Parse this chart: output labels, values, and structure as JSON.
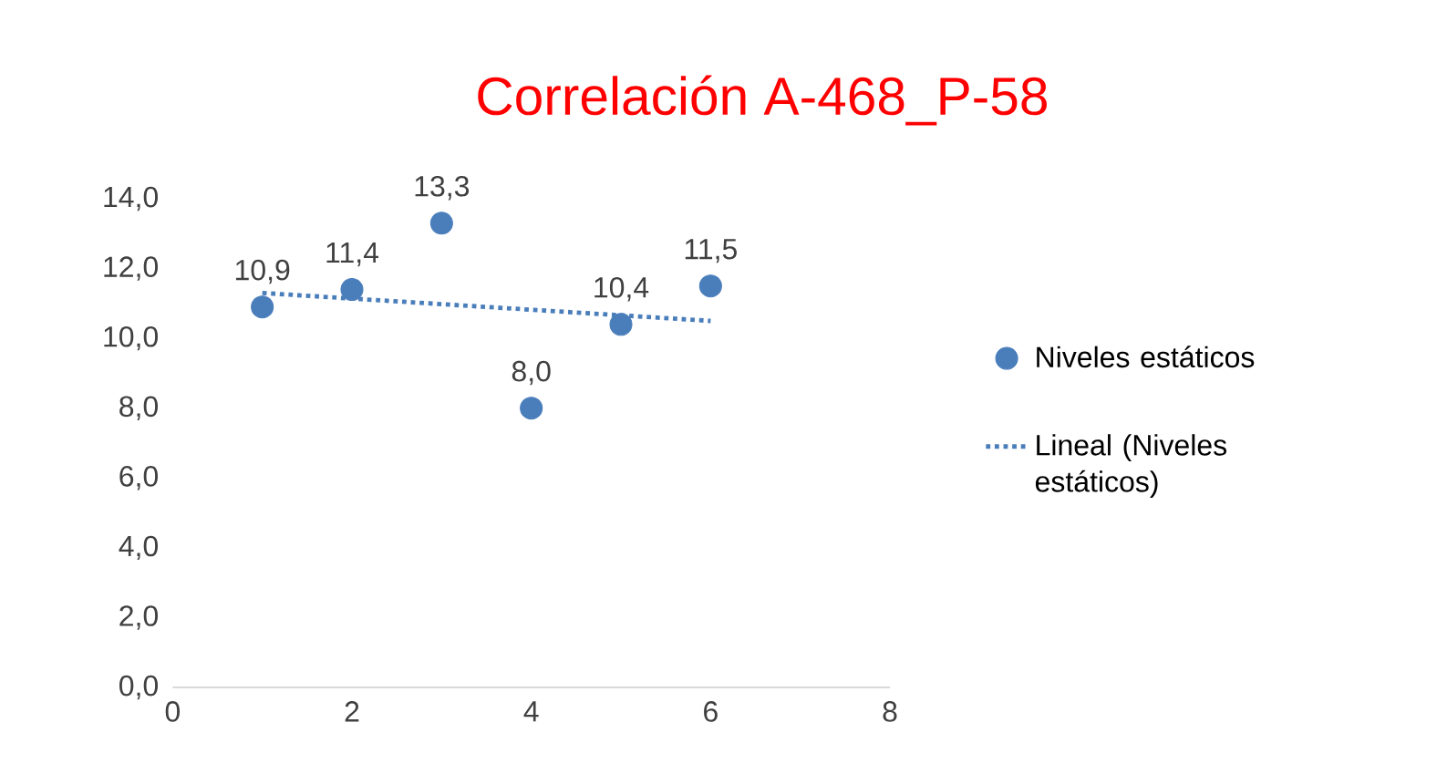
{
  "chart_data": {
    "type": "scatter",
    "title": "Correlación A-468_P-58",
    "x": [
      1,
      2,
      3,
      4,
      5,
      6
    ],
    "series": [
      {
        "name": "Niveles estáticos",
        "color": "#4a7ebb",
        "marker": "circle",
        "values": [
          10.9,
          11.4,
          13.3,
          8.0,
          10.4,
          11.5
        ],
        "value_labels": [
          "10,9",
          "11,4",
          "13,3",
          "8,0",
          "10,4",
          "11,5"
        ]
      },
      {
        "name": "Lineal (Niveles estáticos)",
        "type": "line",
        "color": "#4a7ebb",
        "marker": "none",
        "line_style": "dotted",
        "x": [
          1,
          6
        ],
        "values": [
          11.3,
          10.5
        ]
      }
    ],
    "xlim": [
      0,
      8
    ],
    "xticks": [
      0,
      2,
      4,
      6,
      8
    ],
    "ylim": [
      0,
      14
    ],
    "yticks": [
      {
        "value": 0,
        "label": "0,0"
      },
      {
        "value": 2,
        "label": "2,0"
      },
      {
        "value": 4,
        "label": "4,0"
      },
      {
        "value": 6,
        "label": "6,0"
      },
      {
        "value": 8,
        "label": "8,0"
      },
      {
        "value": 10,
        "label": "10,0"
      },
      {
        "value": 12,
        "label": "12,0"
      },
      {
        "value": 14,
        "label": "14,0"
      }
    ],
    "grid": false,
    "legend": "right"
  }
}
